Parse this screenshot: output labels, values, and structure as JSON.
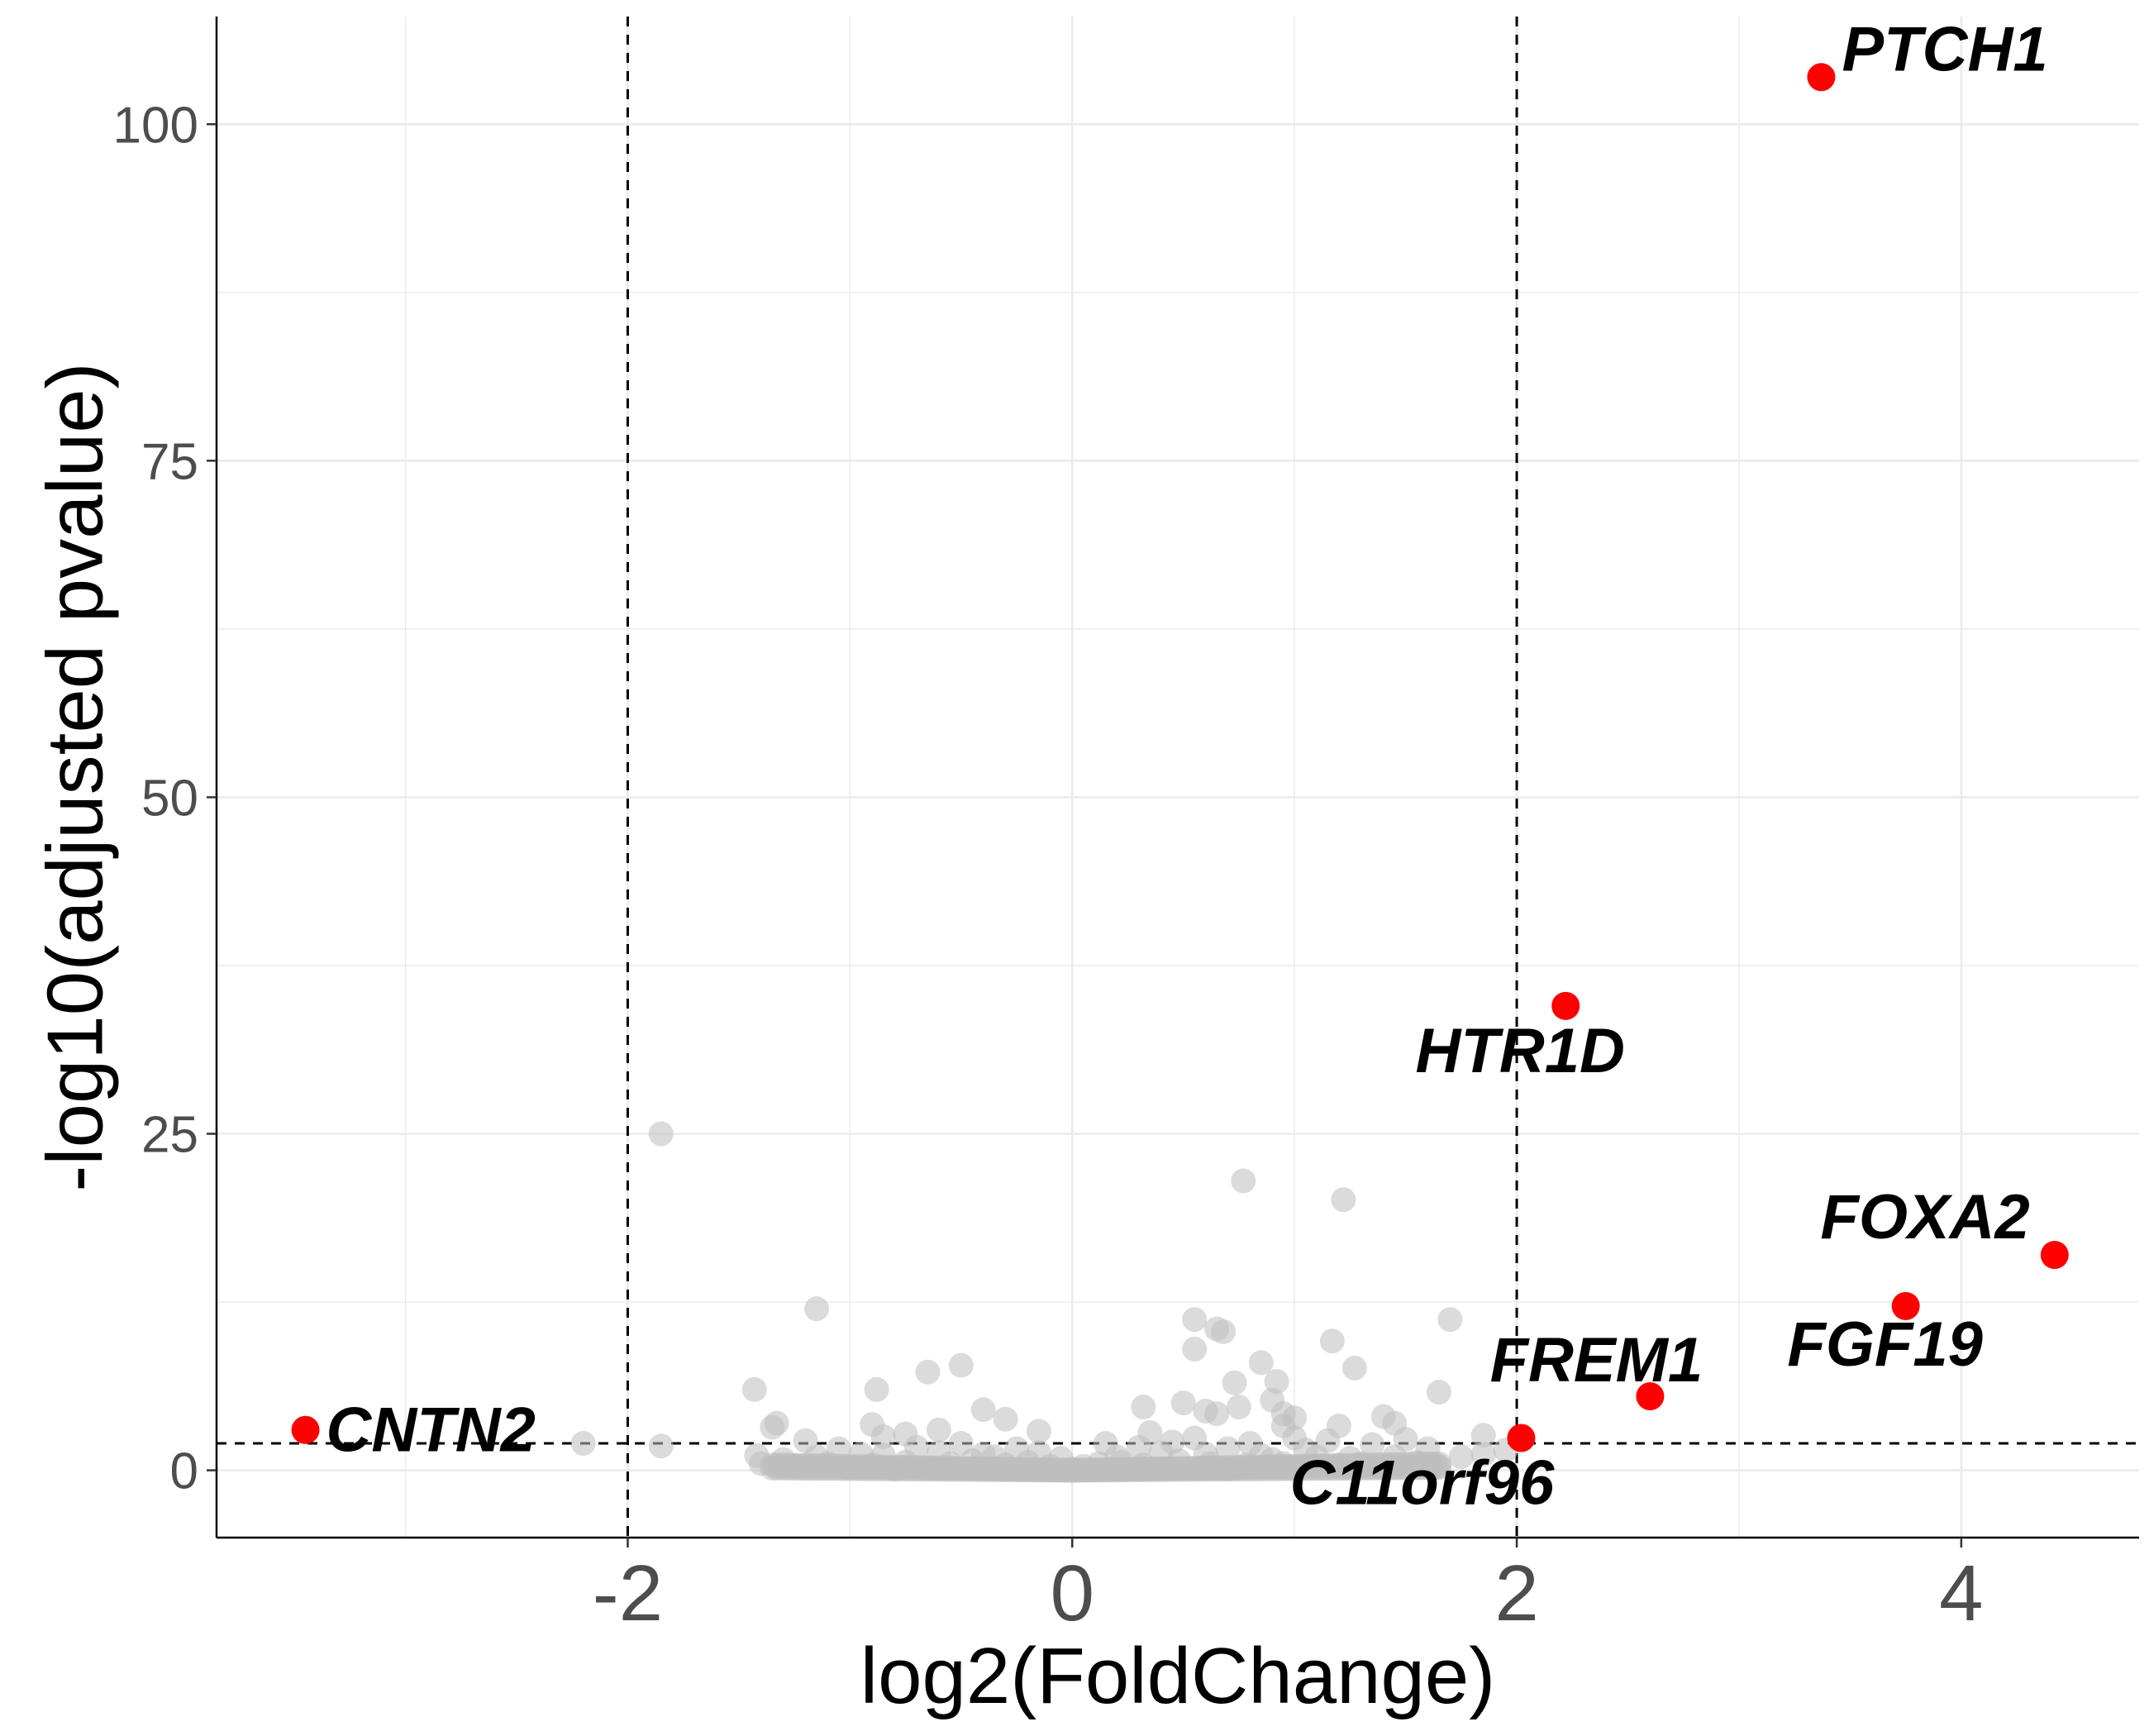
{
  "chart_data": {
    "type": "scatter",
    "title": "",
    "xlabel": "log2(FoldChange)",
    "ylabel": "-log10(adjusted pvalue)",
    "xlim": [
      -3.85,
      4.8
    ],
    "ylim": [
      -5,
      108
    ],
    "x_ticks": [
      -2,
      0,
      2,
      4
    ],
    "x_tick_labels": [
      "-2",
      "0",
      "2",
      "4"
    ],
    "y_ticks": [
      0,
      25,
      50,
      75,
      100
    ],
    "y_tick_labels": [
      "0",
      "25",
      "50",
      "75",
      "100"
    ],
    "grid": true,
    "thresholds": {
      "log2fc": [
        -2,
        2
      ],
      "neg_log10_padj": 2
    },
    "colors": {
      "significant": "#ff0000",
      "background": "#bebebe"
    },
    "significant_genes": [
      {
        "gene": "PTCH1",
        "x": 3.37,
        "y": 103.5
      },
      {
        "gene": "HTR1D",
        "x": 2.22,
        "y": 34.5
      },
      {
        "gene": "FOXA2",
        "x": 4.42,
        "y": 16.0
      },
      {
        "gene": "FGF19",
        "x": 3.75,
        "y": 12.2
      },
      {
        "gene": "FREM1",
        "x": 2.6,
        "y": 5.5
      },
      {
        "gene": "C11orf96",
        "x": 2.02,
        "y": 2.4
      },
      {
        "gene": "CNTN2",
        "x": -3.45,
        "y": 3.0
      }
    ],
    "background_points": [
      {
        "x": -1.85,
        "y": 25.0
      },
      {
        "x": 0.77,
        "y": 21.5
      },
      {
        "x": 1.22,
        "y": 20.1
      },
      {
        "x": -1.15,
        "y": 12.0
      },
      {
        "x": 0.55,
        "y": 11.2
      },
      {
        "x": 1.7,
        "y": 11.2
      },
      {
        "x": 0.65,
        "y": 10.5
      },
      {
        "x": 0.68,
        "y": 10.3
      },
      {
        "x": 1.17,
        "y": 9.6
      },
      {
        "x": 0.55,
        "y": 9.0
      },
      {
        "x": 0.85,
        "y": 8.0
      },
      {
        "x": -0.5,
        "y": 7.8
      },
      {
        "x": 1.27,
        "y": 7.6
      },
      {
        "x": -0.65,
        "y": 7.3
      },
      {
        "x": 0.92,
        "y": 6.6
      },
      {
        "x": 0.73,
        "y": 6.5
      },
      {
        "x": -0.88,
        "y": 6.0
      },
      {
        "x": -1.43,
        "y": 6.0
      },
      {
        "x": 1.65,
        "y": 5.8
      },
      {
        "x": 0.9,
        "y": 5.2
      },
      {
        "x": 0.5,
        "y": 5.0
      },
      {
        "x": 0.32,
        "y": 4.7
      },
      {
        "x": 0.75,
        "y": 4.7
      },
      {
        "x": -0.4,
        "y": 4.5
      },
      {
        "x": 0.6,
        "y": 4.4
      },
      {
        "x": 0.65,
        "y": 4.2
      },
      {
        "x": 0.95,
        "y": 4.2
      },
      {
        "x": 1.4,
        "y": 4.0
      },
      {
        "x": 1.0,
        "y": 3.9
      },
      {
        "x": -0.3,
        "y": 3.8
      },
      {
        "x": 1.45,
        "y": 3.5
      },
      {
        "x": -1.33,
        "y": 3.5
      },
      {
        "x": -0.9,
        "y": 3.4
      },
      {
        "x": 0.95,
        "y": 3.3
      },
      {
        "x": 1.2,
        "y": 3.3
      },
      {
        "x": -1.35,
        "y": 3.2
      },
      {
        "x": -0.6,
        "y": 3.0
      },
      {
        "x": -0.15,
        "y": 2.9
      },
      {
        "x": 0.35,
        "y": 2.8
      },
      {
        "x": -0.75,
        "y": 2.7
      },
      {
        "x": -0.85,
        "y": 2.5
      },
      {
        "x": 0.55,
        "y": 2.4
      },
      {
        "x": -1.2,
        "y": 2.2
      },
      {
        "x": 1.85,
        "y": 2.6
      },
      {
        "x": 1.0,
        "y": 2.4
      },
      {
        "x": -1.85,
        "y": 1.8
      },
      {
        "x": -2.2,
        "y": 2.0
      },
      {
        "x": 1.15,
        "y": 2.2
      },
      {
        "x": 1.5,
        "y": 2.3
      },
      {
        "x": -0.5,
        "y": 2.0
      },
      {
        "x": 0.15,
        "y": 2.0
      },
      {
        "x": 0.45,
        "y": 2.1
      },
      {
        "x": 0.8,
        "y": 2.0
      },
      {
        "x": 1.35,
        "y": 1.9
      },
      {
        "x": -1.05,
        "y": 1.6
      },
      {
        "x": -0.7,
        "y": 1.7
      },
      {
        "x": -0.25,
        "y": 1.6
      },
      {
        "x": 0.3,
        "y": 1.7
      },
      {
        "x": 0.7,
        "y": 1.6
      },
      {
        "x": 1.05,
        "y": 1.5
      },
      {
        "x": 1.6,
        "y": 1.6
      },
      {
        "x": 1.95,
        "y": 1.5
      },
      {
        "x": -1.42,
        "y": 1.1
      },
      {
        "x": -1.3,
        "y": 0.8
      },
      {
        "x": -1.15,
        "y": 1.0
      },
      {
        "x": -0.95,
        "y": 1.2
      },
      {
        "x": -0.85,
        "y": 1.1
      },
      {
        "x": -0.6,
        "y": 1.3
      },
      {
        "x": -0.4,
        "y": 1.2
      },
      {
        "x": -0.35,
        "y": 1.0
      },
      {
        "x": 0.4,
        "y": 1.3
      },
      {
        "x": 0.6,
        "y": 1.2
      },
      {
        "x": 0.85,
        "y": 1.1
      },
      {
        "x": 1.1,
        "y": 1.0
      },
      {
        "x": 1.25,
        "y": 0.9
      },
      {
        "x": 1.45,
        "y": 1.0
      },
      {
        "x": 1.75,
        "y": 1.0
      },
      {
        "x": 1.85,
        "y": 1.2
      },
      {
        "x": 1.55,
        "y": 0.6
      },
      {
        "x": 1.3,
        "y": 0.5
      },
      {
        "x": -1.4,
        "y": 0.5
      },
      {
        "x": -1.25,
        "y": 0.3
      },
      {
        "x": -1.1,
        "y": 0.5
      },
      {
        "x": -0.9,
        "y": 0.4
      },
      {
        "x": -0.75,
        "y": 0.6
      },
      {
        "x": -0.55,
        "y": 0.5
      },
      {
        "x": -0.45,
        "y": 0.7
      },
      {
        "x": -0.3,
        "y": 0.4
      },
      {
        "x": -0.2,
        "y": 0.6
      },
      {
        "x": -0.1,
        "y": 0.3
      },
      {
        "x": 0.05,
        "y": 0.3
      },
      {
        "x": 0.12,
        "y": 0.5
      },
      {
        "x": 0.22,
        "y": 0.6
      },
      {
        "x": 0.32,
        "y": 0.4
      },
      {
        "x": 0.48,
        "y": 0.7
      },
      {
        "x": 0.62,
        "y": 0.5
      },
      {
        "x": 0.78,
        "y": 0.4
      },
      {
        "x": 0.95,
        "y": 0.5
      },
      {
        "x": 1.08,
        "y": 0.3
      },
      {
        "x": 1.2,
        "y": 0.4
      },
      {
        "x": 1.4,
        "y": 0.2
      },
      {
        "x": 1.65,
        "y": 0.3
      },
      {
        "x": -1.0,
        "y": 0.2
      },
      {
        "x": -0.65,
        "y": 0.2
      },
      {
        "x": 0.0,
        "y": 0.1
      },
      {
        "x": 0.35,
        "y": 0.1
      },
      {
        "x": 0.7,
        "y": 0.1
      },
      {
        "x": 1.0,
        "y": 0.1
      },
      {
        "x": -0.35,
        "y": 0.1
      },
      {
        "x": -0.8,
        "y": 0.1
      },
      {
        "x": 0.9,
        "y": 0.8
      },
      {
        "x": -0.05,
        "y": 0.9
      },
      {
        "x": 0.2,
        "y": 1.0
      },
      {
        "x": -0.15,
        "y": 1.3
      }
    ]
  }
}
